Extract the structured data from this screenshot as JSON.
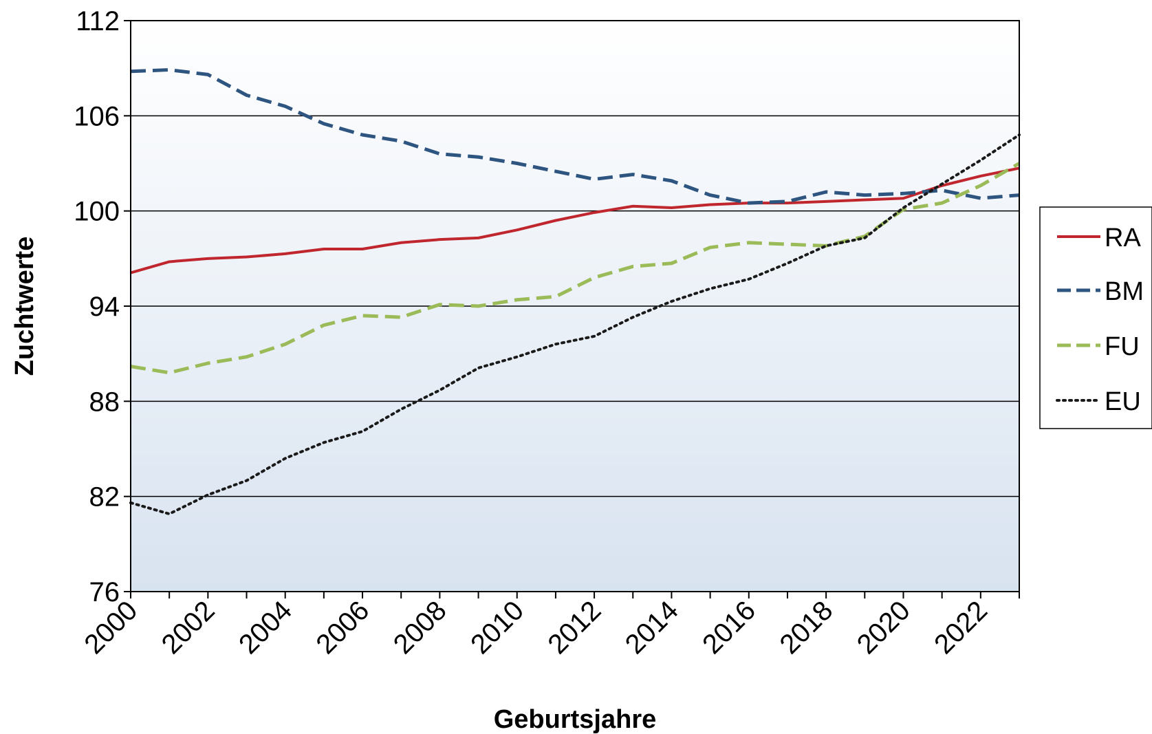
{
  "chart_data": {
    "type": "line",
    "xlabel": "Geburtsjahre",
    "ylabel": "Zuchtwerte",
    "ylim": [
      76,
      112
    ],
    "y_ticks": [
      "76",
      "82",
      "88",
      "94",
      "100",
      "106",
      "112"
    ],
    "x_ticks": [
      "2000",
      "2002",
      "2004",
      "2006",
      "2008",
      "2010",
      "2012",
      "2014",
      "2016",
      "2018",
      "2020",
      "2022"
    ],
    "x": [
      2000,
      2001,
      2002,
      2003,
      2004,
      2005,
      2006,
      2007,
      2008,
      2009,
      2010,
      2011,
      2012,
      2013,
      2014,
      2015,
      2016,
      2017,
      2018,
      2019,
      2020,
      2021,
      2022,
      2023
    ],
    "grid": "horizontal",
    "legend_position": "right",
    "series": [
      {
        "name": "RA",
        "color": "#c0262d",
        "style": "solid",
        "values": [
          96.1,
          96.8,
          97.0,
          97.1,
          97.3,
          97.6,
          97.6,
          98.0,
          98.2,
          98.3,
          98.8,
          99.4,
          99.9,
          100.3,
          100.2,
          100.4,
          100.5,
          100.5,
          100.6,
          100.7,
          100.8,
          101.6,
          102.2,
          102.7
        ]
      },
      {
        "name": "BM",
        "color": "#2e5480",
        "style": "dashed",
        "values": [
          108.8,
          108.9,
          108.6,
          107.3,
          106.6,
          105.5,
          104.8,
          104.4,
          103.6,
          103.4,
          103.0,
          102.5,
          102.0,
          102.3,
          101.9,
          101.0,
          100.5,
          100.6,
          101.2,
          101.0,
          101.1,
          101.3,
          100.8,
          101.0
        ]
      },
      {
        "name": "FU",
        "color": "#9bbb59",
        "style": "dashed",
        "values": [
          90.2,
          89.8,
          90.4,
          90.8,
          91.6,
          92.8,
          93.4,
          93.3,
          94.1,
          94.0,
          94.4,
          94.6,
          95.8,
          96.5,
          96.7,
          97.7,
          98.0,
          97.9,
          97.8,
          98.4,
          100.1,
          100.5,
          101.6,
          103.0
        ]
      },
      {
        "name": "EU",
        "color": "#1a1a1a",
        "style": "dotted",
        "values": [
          81.6,
          80.9,
          82.1,
          83.0,
          84.4,
          85.4,
          86.1,
          87.5,
          88.7,
          90.1,
          90.8,
          91.6,
          92.1,
          93.3,
          94.3,
          95.1,
          95.7,
          96.7,
          97.8,
          98.3,
          100.2,
          101.7,
          103.2,
          104.8
        ]
      }
    ]
  }
}
